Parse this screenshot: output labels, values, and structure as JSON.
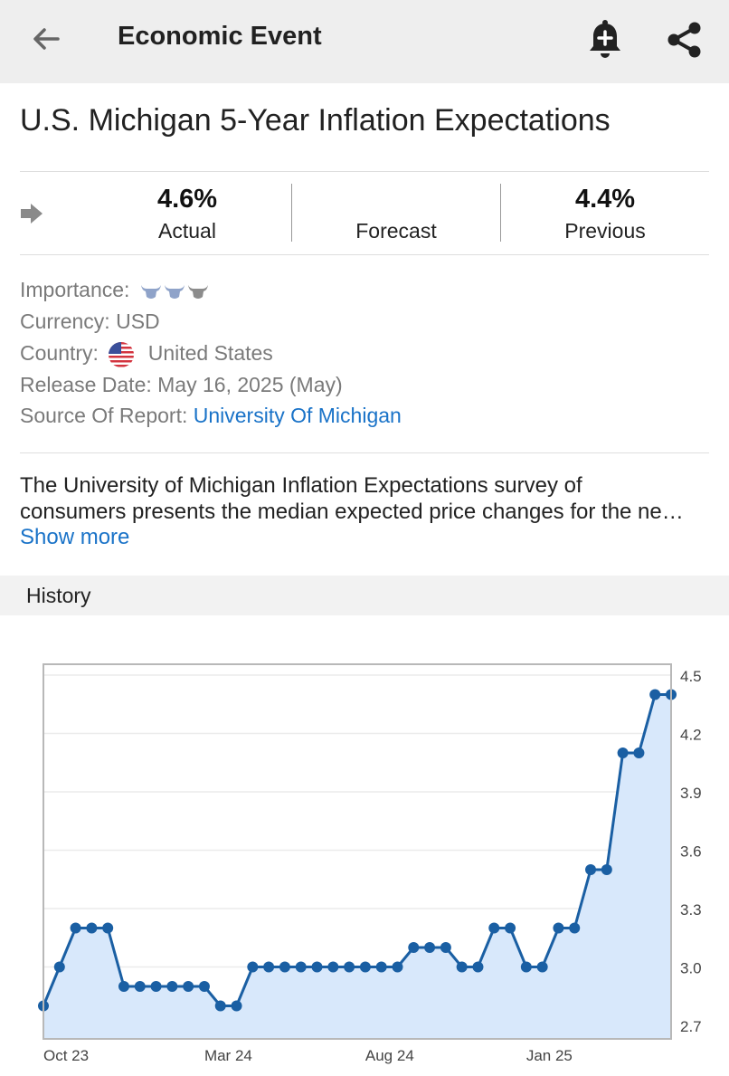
{
  "header": {
    "title": "Economic Event"
  },
  "event": {
    "title": "U.S. Michigan 5-Year Inflation Expectations",
    "actual_value": "4.6%",
    "actual_label": "Actual",
    "forecast_value": "",
    "forecast_label": "Forecast",
    "previous_value": "4.4%",
    "previous_label": "Previous"
  },
  "details": {
    "importance_label": "Importance:",
    "importance_level": 2,
    "currency_label": "Currency:",
    "currency_value": "USD",
    "country_label": "Country:",
    "country_value": "United States",
    "release_label": "Release Date:",
    "release_value": "May 16, 2025 (May)",
    "source_label": "Source Of Report:",
    "source_value": "University Of Michigan"
  },
  "description": {
    "line1": "The University of Michigan Inflation Expectations survey of",
    "line2": "consumers presents the median expected price changes for the ne…",
    "show_more": "Show more"
  },
  "history": {
    "title": "History"
  },
  "colors": {
    "accent": "#1a73c8",
    "line": "#1a5fa3",
    "fill": "#d8e8fb",
    "topbar": "#eeeeee"
  },
  "chart_data": {
    "type": "area",
    "title": "",
    "xlabel": "",
    "ylabel": "",
    "ylim": [
      2.7,
      4.5
    ],
    "yticks": [
      "4.5",
      "4.2",
      "3.9",
      "3.6",
      "3.3",
      "3.0",
      "2.7"
    ],
    "xtick_labels": [
      "Oct 23",
      "Mar 24",
      "Aug 24",
      "Jan 25"
    ],
    "xtick_index": [
      0,
      10,
      20,
      30
    ],
    "values": [
      2.8,
      3.0,
      3.2,
      3.2,
      3.2,
      2.9,
      2.9,
      2.9,
      2.9,
      2.9,
      2.9,
      2.8,
      2.8,
      3.0,
      3.0,
      3.0,
      3.0,
      3.0,
      3.0,
      3.0,
      3.0,
      3.0,
      3.0,
      3.1,
      3.1,
      3.1,
      3.0,
      3.0,
      3.2,
      3.2,
      3.0,
      3.0,
      3.2,
      3.2,
      3.5,
      3.5,
      4.1,
      4.1,
      4.4,
      4.4
    ],
    "grid": true
  }
}
